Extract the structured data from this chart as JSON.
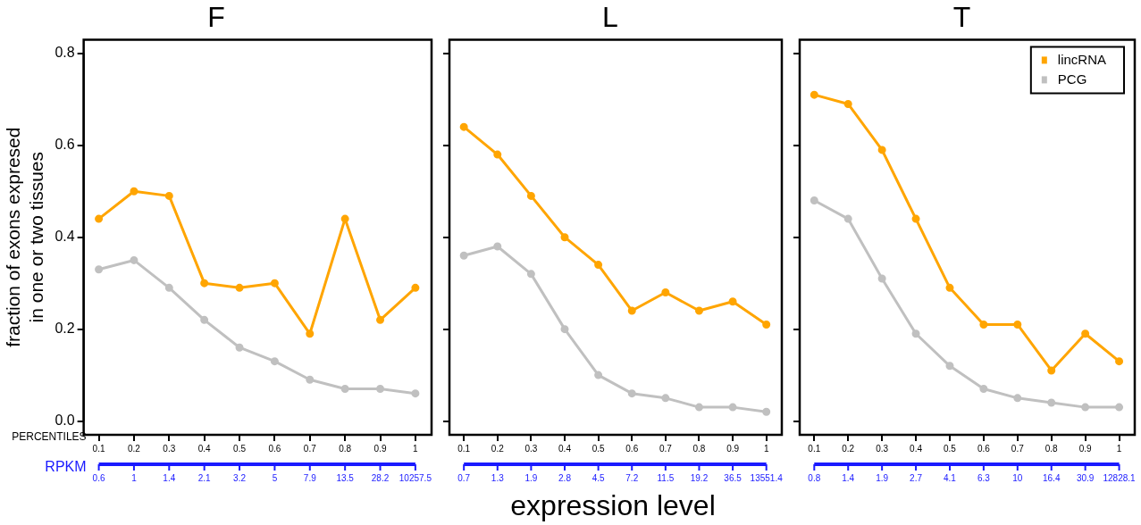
{
  "chart_data": [
    {
      "type": "line",
      "title": "F",
      "ylabel": "fraction of exons expresed in one or two tissues",
      "xlabel": "PERCENTILES",
      "x2label": "RPKM",
      "marker": "circle",
      "line_style": "solid",
      "x": [
        0.1,
        0.2,
        0.3,
        0.4,
        0.5,
        0.6,
        0.7,
        0.8,
        0.9,
        1
      ],
      "xlim": [
        0.057,
        1.046
      ],
      "xticks": [
        0.1,
        0.2,
        0.3,
        0.4,
        0.5,
        0.6,
        0.7,
        0.8,
        0.9,
        1
      ],
      "ylim": [
        -0.03,
        0.83
      ],
      "yticks": [
        {
          "value": 0,
          "label": "0.0"
        },
        0.2,
        0.4,
        0.6,
        0.8
      ],
      "annotations": [
        "0.6",
        "1",
        "1.4",
        "2.1",
        "3.2",
        "5",
        "7.9",
        "13.5",
        "28.2",
        "10257.5"
      ],
      "series": [
        {
          "color": "#ffa500",
          "values": [
            0.44,
            0.5,
            0.49,
            0.3,
            0.29,
            0.3,
            0.19,
            0.44,
            0.22,
            0.29
          ]
        },
        {
          "color": "#c0c0c0",
          "values": [
            0.33,
            0.35,
            0.29,
            0.22,
            0.16,
            0.13,
            0.09,
            0.07,
            0.07,
            0.06
          ]
        }
      ]
    },
    {
      "type": "line",
      "title": "L",
      "marker": "circle",
      "line_style": "solid",
      "tick_labels": "x",
      "x": [
        0.1,
        0.2,
        0.3,
        0.4,
        0.5,
        0.6,
        0.7,
        0.8,
        0.9,
        1
      ],
      "xlim": [
        0.057,
        1.046
      ],
      "xticks": [
        0.1,
        0.2,
        0.3,
        0.4,
        0.5,
        0.6,
        0.7,
        0.8,
        0.9,
        1
      ],
      "ylim": [
        -0.03,
        0.83
      ],
      "yticks": [
        0,
        0.2,
        0.4,
        0.6,
        0.8
      ],
      "annotations": [
        "0.7",
        "1.3",
        "1.9",
        "2.8",
        "4.5",
        "7.2",
        "11.5",
        "19.2",
        "36.5",
        "13551.4",
        "expression level"
      ],
      "series": [
        {
          "color": "#ffa500",
          "values": [
            0.64,
            0.58,
            0.49,
            0.4,
            0.34,
            0.24,
            0.28,
            0.24,
            0.26,
            0.21
          ]
        },
        {
          "color": "#c0c0c0",
          "values": [
            0.36,
            0.38,
            0.32,
            0.2,
            0.1,
            0.06,
            0.05,
            0.03,
            0.03,
            0.02
          ]
        }
      ]
    },
    {
      "type": "line",
      "title": "T",
      "marker": "circle",
      "line_style": "solid",
      "tick_labels": "x",
      "legend": "top right",
      "x": [
        0.1,
        0.2,
        0.3,
        0.4,
        0.5,
        0.6,
        0.7,
        0.8,
        0.9,
        1
      ],
      "xlim": [
        0.057,
        1.046
      ],
      "xticks": [
        0.1,
        0.2,
        0.3,
        0.4,
        0.5,
        0.6,
        0.7,
        0.8,
        0.9,
        1
      ],
      "ylim": [
        -0.03,
        0.83
      ],
      "yticks": [
        0,
        0.2,
        0.4,
        0.6,
        0.8
      ],
      "annotations": [
        "0.8",
        "1.4",
        "1.9",
        "2.7",
        "4.1",
        "6.3",
        "10",
        "16.4",
        "30.9",
        "12828.1"
      ],
      "series": [
        {
          "name": "lincRNA",
          "color": "#ffa500",
          "values": [
            0.71,
            0.69,
            0.59,
            0.44,
            0.29,
            0.21,
            0.21,
            0.11,
            0.19,
            0.13
          ]
        },
        {
          "name": "PCG",
          "color": "#c0c0c0",
          "values": [
            0.48,
            0.44,
            0.31,
            0.19,
            0.12,
            0.07,
            0.05,
            0.04,
            0.03,
            0.03
          ]
        }
      ]
    }
  ]
}
